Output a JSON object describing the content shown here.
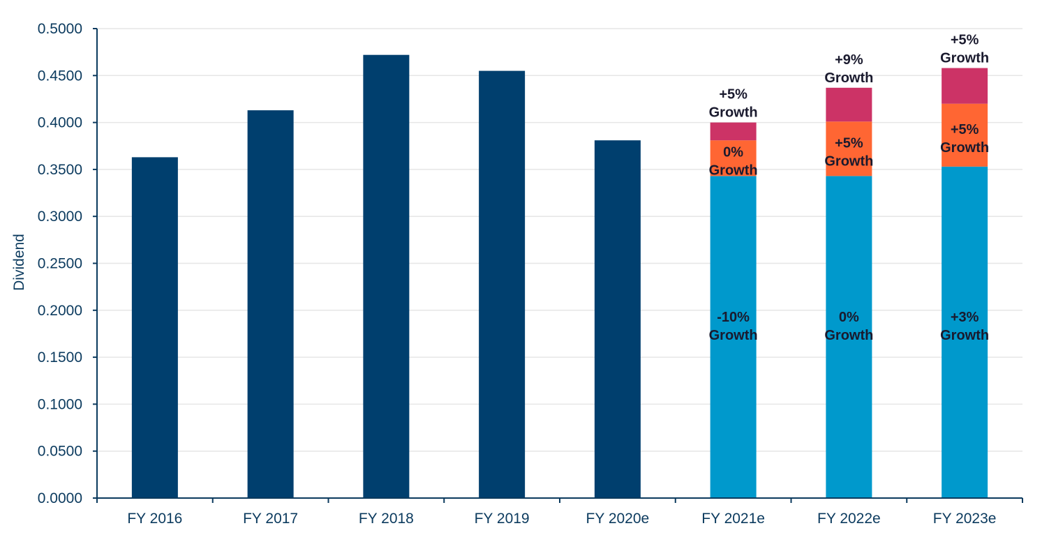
{
  "chart_data": {
    "type": "bar",
    "ylabel": "Dividend",
    "ylim": [
      0,
      0.5
    ],
    "yticks": [
      "0.0000",
      "0.0500",
      "0.1000",
      "0.1500",
      "0.2000",
      "0.2500",
      "0.3000",
      "0.3500",
      "0.4000",
      "0.4500",
      "0.5000"
    ],
    "grid": true,
    "colors": {
      "actual": "#003f6e",
      "base": "#0099cc",
      "mid": "#ff6633",
      "top": "#cc3366",
      "axis": "#0b3a5e",
      "grid": "#e6e6e6"
    },
    "categories": [
      "FY 2016",
      "FY 2017",
      "FY 2018",
      "FY 2019",
      "FY 2020e",
      "FY 2021e",
      "FY 2022e",
      "FY 2023e"
    ],
    "actuals": [
      0.363,
      0.413,
      0.472,
      0.455,
      0.381,
      null,
      null,
      null
    ],
    "stacks": [
      null,
      null,
      null,
      null,
      null,
      {
        "base": 0.343,
        "mid": 0.038,
        "top": 0.019,
        "base_label": [
          "-10%",
          "Growth"
        ],
        "mid_label": [
          "0%",
          "Growth"
        ],
        "top_label": [
          "+5%",
          "Growth"
        ]
      },
      {
        "base": 0.343,
        "mid": 0.058,
        "top": 0.036,
        "base_label": [
          "0%",
          "Growth"
        ],
        "mid_label": [
          "+5%",
          "Growth"
        ],
        "top_label": [
          "+9%",
          "Growth"
        ]
      },
      {
        "base": 0.353,
        "mid": 0.067,
        "top": 0.038,
        "base_label": [
          "+3%",
          "Growth"
        ],
        "mid_label": [
          "+5%",
          "Growth"
        ],
        "top_label": [
          "+5%",
          "Growth"
        ]
      }
    ]
  }
}
